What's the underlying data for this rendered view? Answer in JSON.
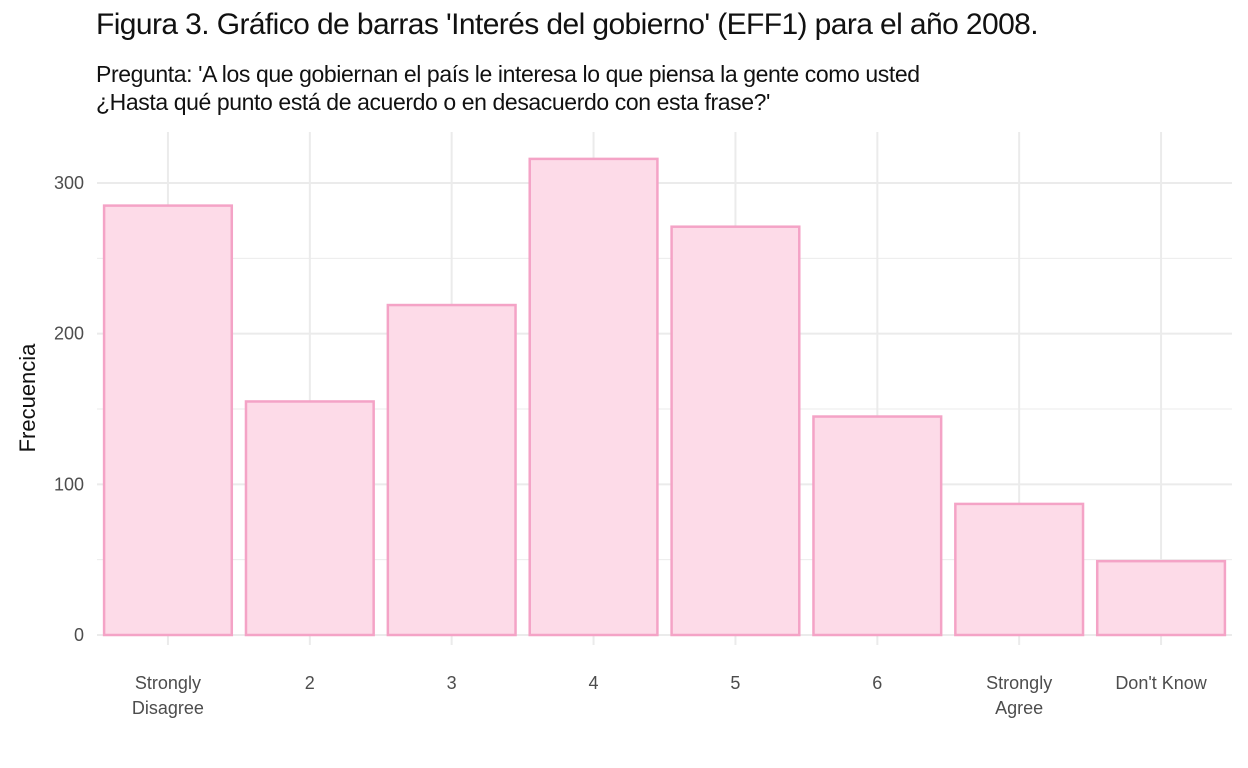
{
  "chart_data": {
    "type": "bar",
    "title": "Figura 3. Gráfico de barras 'Interés del gobierno' (EFF1) para el año 2008.",
    "subtitle_lines": [
      "Pregunta: 'A los que gobiernan el país le interesa lo que piensa la gente como usted",
      "¿Hasta qué punto está de acuerdo o en desacuerdo con esta frase?'"
    ],
    "xlabel": "",
    "ylabel": "Frecuencia",
    "categories": [
      [
        "Strongly",
        "Disagree"
      ],
      [
        "2"
      ],
      [
        "3"
      ],
      [
        "4"
      ],
      [
        "5"
      ],
      [
        "6"
      ],
      [
        "Strongly",
        "Agree"
      ],
      [
        "Don't Know"
      ]
    ],
    "values": [
      285,
      155,
      219,
      316,
      271,
      145,
      87,
      49
    ],
    "ylim": [
      0,
      320
    ],
    "yticks": [
      0,
      100,
      200,
      300
    ],
    "grid": true,
    "legend": "none",
    "colors": {
      "bar_fill": "#fddbe8",
      "bar_stroke": "#f4a3c6",
      "grid": "#ebebeb"
    }
  }
}
